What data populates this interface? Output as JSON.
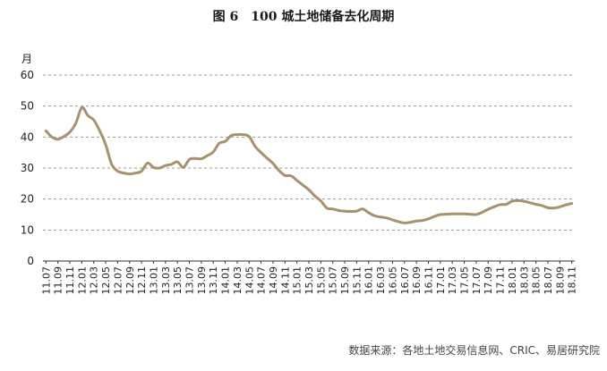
{
  "chart_data": {
    "type": "line",
    "title": "图 6　100 城土地储备去化周期",
    "ylabel": "月",
    "xlabel": "",
    "ylim": [
      0,
      60
    ],
    "yticks": [
      0,
      10,
      20,
      30,
      40,
      50,
      60
    ],
    "grid": true,
    "legend": "none",
    "x": [
      "11.07",
      "11.08",
      "11.09",
      "11.10",
      "11.11",
      "11.12",
      "12.01",
      "12.02",
      "12.03",
      "12.04",
      "12.05",
      "12.06",
      "12.07",
      "12.08",
      "12.09",
      "12.10",
      "12.11",
      "12.12",
      "13.01",
      "13.02",
      "13.03",
      "13.04",
      "13.05",
      "13.06",
      "13.07",
      "13.08",
      "13.09",
      "13.10",
      "13.11",
      "13.12",
      "14.01",
      "14.02",
      "14.03",
      "14.04",
      "14.05",
      "14.06",
      "14.07",
      "14.08",
      "14.09",
      "14.10",
      "14.11",
      "14.12",
      "15.01",
      "15.02",
      "15.03",
      "15.04",
      "15.05",
      "15.06",
      "15.07",
      "15.08",
      "15.09",
      "15.10",
      "15.11",
      "15.12",
      "16.01",
      "16.02",
      "16.03",
      "16.04",
      "16.05",
      "16.06",
      "16.07",
      "16.08",
      "16.09",
      "16.10",
      "16.11",
      "16.12",
      "17.01",
      "17.02",
      "17.03",
      "17.04",
      "17.05",
      "17.06",
      "17.07",
      "17.08",
      "17.09",
      "17.10",
      "17.11",
      "17.12",
      "18.01",
      "18.02",
      "18.03",
      "18.04",
      "18.05",
      "18.06",
      "18.07",
      "18.08",
      "18.09",
      "18.10",
      "18.11"
    ],
    "tick_labels": [
      "11.07",
      "11.09",
      "11.11",
      "12.01",
      "12.03",
      "12.05",
      "12.07",
      "12.09",
      "12.11",
      "13.01",
      "13.03",
      "13.05",
      "13.07",
      "13.09",
      "13.11",
      "14.01",
      "14.03",
      "14.05",
      "14.07",
      "14.09",
      "14.11",
      "15.01",
      "15.03",
      "15.05",
      "15.07",
      "15.09",
      "15.11",
      "16.01",
      "16.03",
      "16.05",
      "16.07",
      "16.09",
      "16.11",
      "17.01",
      "17.03",
      "17.05",
      "17.07",
      "17.09",
      "17.11",
      "18.01",
      "18.03",
      "18.05",
      "18.07",
      "18.09",
      "18.11"
    ],
    "series": [
      {
        "color": "#a8916e",
        "values": [
          42.0,
          40.0,
          39.3,
          40.2,
          41.6,
          44.5,
          49.5,
          47.0,
          45.5,
          42.0,
          37.5,
          31.2,
          29.0,
          28.4,
          28.1,
          28.4,
          29.0,
          31.6,
          30.2,
          30.0,
          30.8,
          31.2,
          32.0,
          30.2,
          32.8,
          33.1,
          33.0,
          34.0,
          35.2,
          38.0,
          38.6,
          40.5,
          40.8,
          40.8,
          40.2,
          37.0,
          35.0,
          33.2,
          31.5,
          29.2,
          27.6,
          27.5,
          26.0,
          24.5,
          23.0,
          21.0,
          19.4,
          17.1,
          16.8,
          16.3,
          16.1,
          16.0,
          16.1,
          16.8,
          15.6,
          14.6,
          14.2,
          13.9,
          13.3,
          12.7,
          12.3,
          12.5,
          12.9,
          13.1,
          13.6,
          14.4,
          15.0,
          15.1,
          15.2,
          15.2,
          15.2,
          15.1,
          15.0,
          15.7,
          16.7,
          17.5,
          18.2,
          18.3,
          19.3,
          19.5,
          19.3,
          18.8,
          18.3,
          17.9,
          17.2,
          17.1,
          17.5,
          18.1,
          18.6
        ]
      }
    ]
  },
  "source_note": "数据来源：各地土地交易信息网、CRIC、易居研究院"
}
